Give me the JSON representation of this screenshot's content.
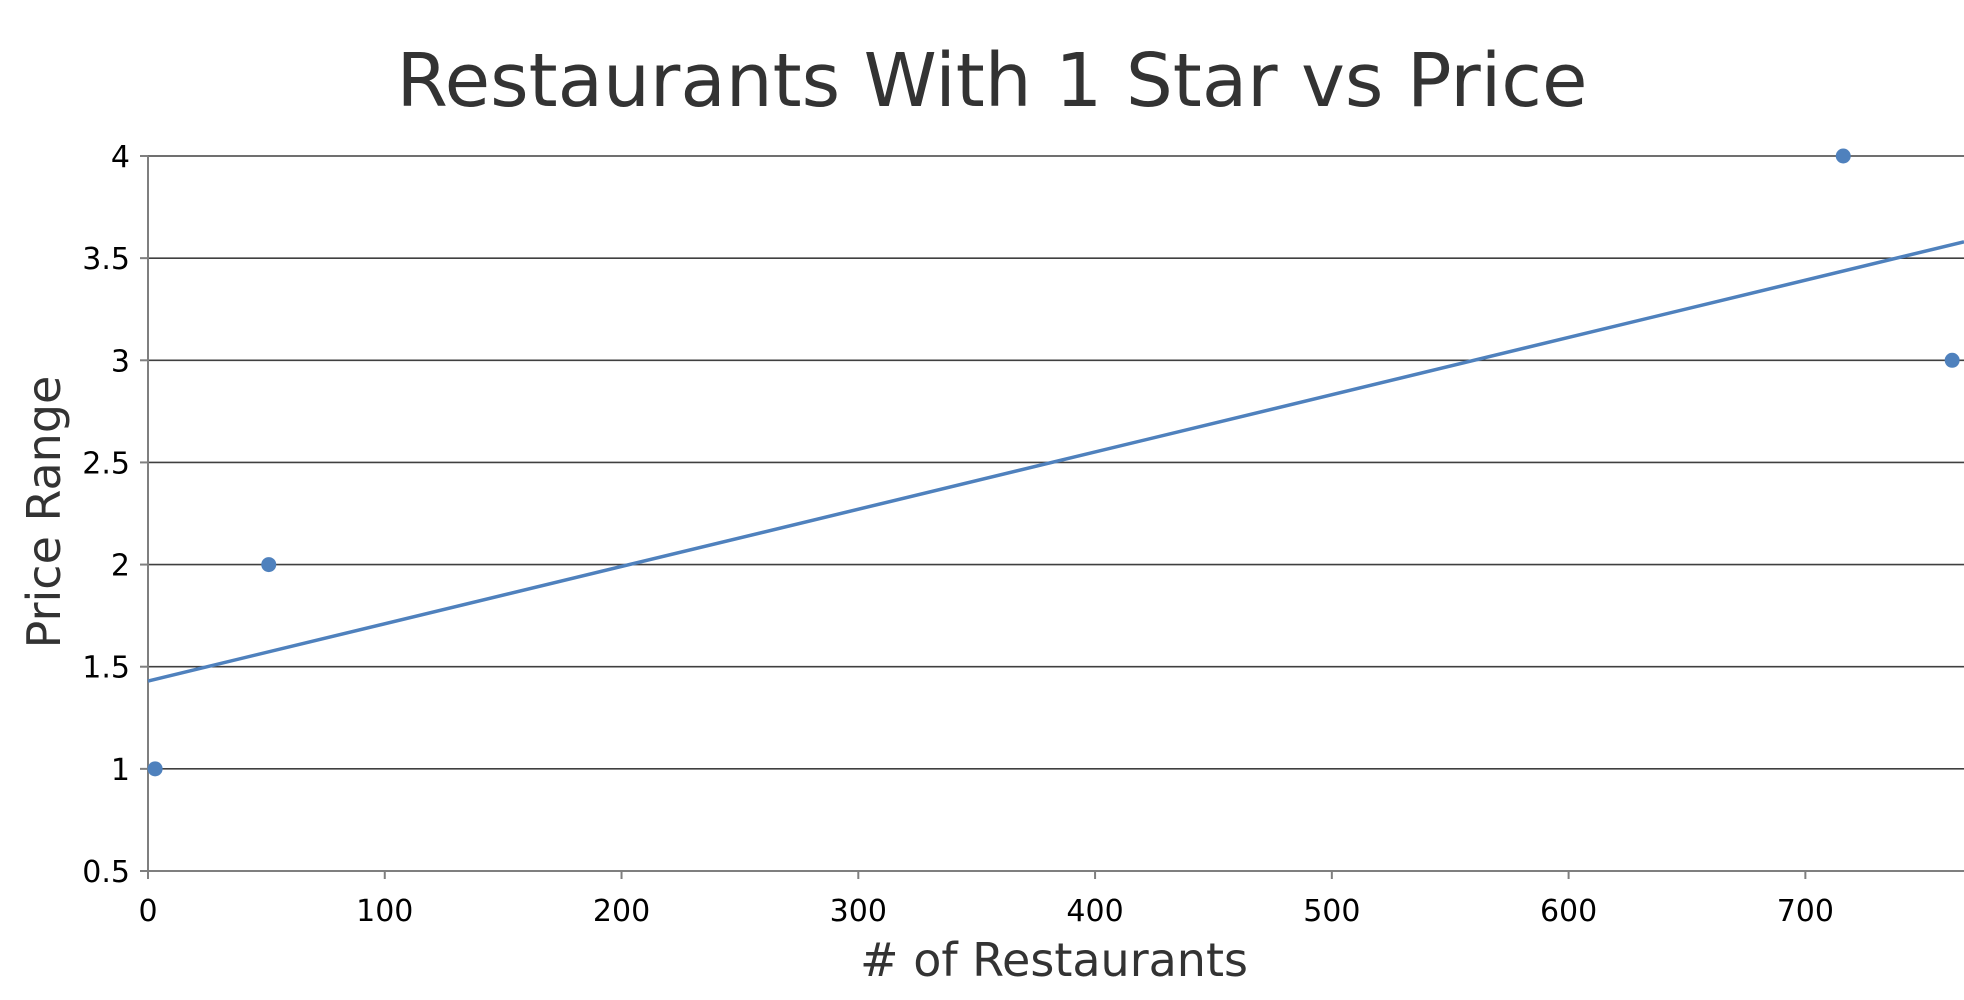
{
  "chart_data": {
    "type": "scatter",
    "title": "Restaurants With 1 Star vs Price",
    "xlabel": "# of Restaurants",
    "ylabel": "Price Range",
    "xlim": [
      0,
      767
    ],
    "ylim": [
      0.5,
      4
    ],
    "x_ticks": [
      0,
      100,
      200,
      300,
      400,
      500,
      600,
      700
    ],
    "y_ticks": [
      0.5,
      1,
      1.5,
      2,
      2.5,
      3,
      3.5,
      4
    ],
    "grid": true,
    "legend": "none",
    "series": [
      {
        "points": [
          {
            "x": 3,
            "y": 1
          },
          {
            "x": 51,
            "y": 2
          },
          {
            "x": 716,
            "y": 4
          },
          {
            "x": 762,
            "y": 3
          }
        ],
        "color": "#4f81bd"
      }
    ],
    "trendline": {
      "type": "linear",
      "from": {
        "x": 0,
        "y": 1.43
      },
      "to": {
        "x": 767,
        "y": 3.58
      },
      "color": "#4f81bd"
    }
  }
}
